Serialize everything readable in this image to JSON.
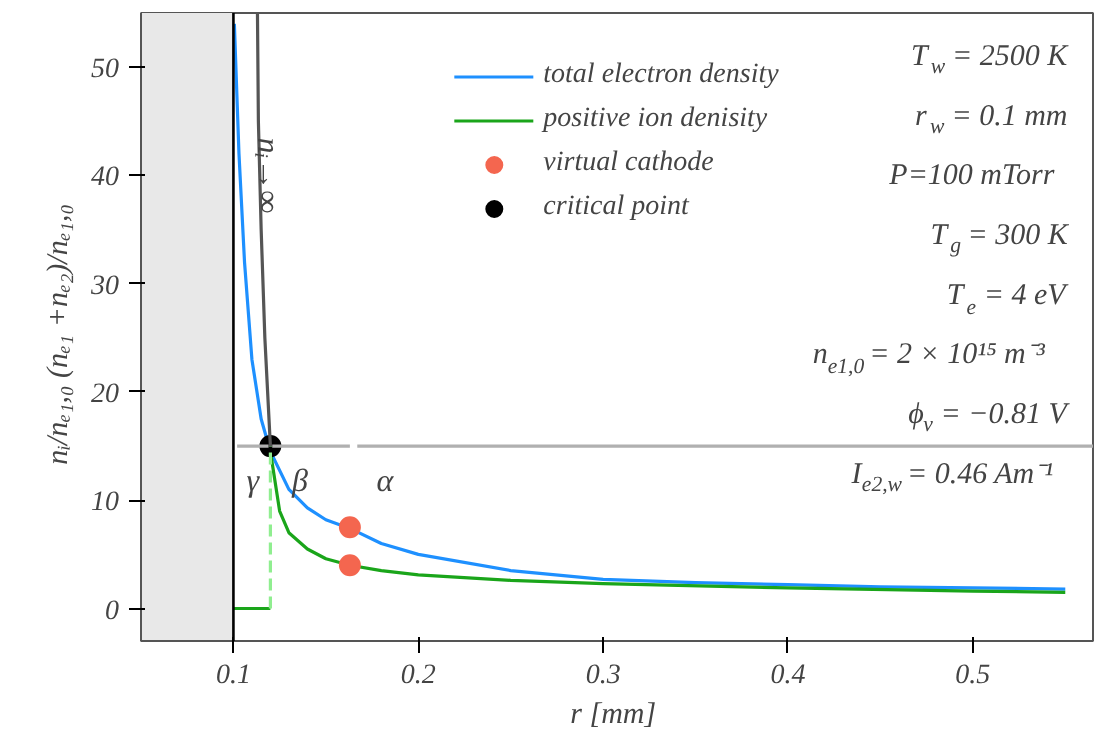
{
  "chart_data": {
    "type": "line",
    "xlabel": "r  [mm]",
    "ylabel": "nᵢ/nₑ₁,₀   (nₑ₁ +nₑ₂)/nₑ₁,₀",
    "xlim": [
      0.05,
      0.565
    ],
    "ylim": [
      -3,
      55
    ],
    "xticks": [
      0.1,
      0.2,
      0.3,
      0.4,
      0.5
    ],
    "yticks": [
      0,
      10,
      20,
      30,
      40,
      50
    ],
    "grid": false,
    "legend": "top",
    "marker": "none",
    "line_style": "solid",
    "series": [
      {
        "name": "total electron density",
        "color": "#1e90ff",
        "x": [
          0.1005,
          0.103,
          0.106,
          0.11,
          0.115,
          0.12,
          0.13,
          0.14,
          0.15,
          0.163,
          0.18,
          0.2,
          0.25,
          0.3,
          0.35,
          0.4,
          0.45,
          0.5,
          0.55
        ],
        "values": [
          54,
          42,
          32,
          23,
          17.5,
          14.5,
          11,
          9.3,
          8.2,
          7.4,
          6,
          5,
          3.5,
          2.7,
          2.4,
          2.2,
          2.0,
          1.9,
          1.8
        ]
      },
      {
        "name": "positive ion denisity",
        "color": "#1aa51a",
        "x": [
          0.12,
          0.125,
          0.13,
          0.14,
          0.15,
          0.163,
          0.18,
          0.2,
          0.25,
          0.3,
          0.4,
          0.5,
          0.55
        ],
        "values": [
          14.5,
          9,
          7,
          5.5,
          4.6,
          4,
          3.5,
          3.1,
          2.6,
          2.3,
          1.9,
          1.6,
          1.5
        ]
      },
      {
        "name": "virtual cathode",
        "type": "scatter",
        "marker": "circle",
        "color": "#f4664f",
        "x": [
          0.163,
          0.163
        ],
        "values": [
          7.5,
          4
        ]
      },
      {
        "name": "critical point",
        "type": "scatter",
        "marker": "circle",
        "color": "#000000",
        "x": [
          0.12
        ],
        "values": [
          15
        ]
      },
      {
        "color": "#1aa51a",
        "x": [
          0.1,
          0.12
        ],
        "values": [
          0,
          0
        ]
      },
      {
        "color": "#90ee90",
        "line_style": "dashed",
        "x": [
          0.12,
          0.12
        ],
        "values": [
          0,
          15
        ]
      },
      {
        "color": "#555555",
        "x": [
          0.12,
          0.117,
          0.115,
          0.1135,
          0.113
        ],
        "values": [
          15,
          25,
          35,
          45,
          55
        ]
      },
      {
        "color": "#b0b0b0",
        "x": [
          0.102,
          0.119,
          0.12,
          0.121,
          0.163,
          0.165,
          0.167,
          0.565
        ],
        "values": [
          15,
          15,
          null,
          15,
          15,
          null,
          15,
          15
        ]
      }
    ],
    "ref_lines": [
      {
        "axis": "x",
        "value": 0.1,
        "color": "#000000"
      }
    ],
    "bands": [
      {
        "axis": "x",
        "from": 0.05,
        "to": 0.1,
        "color": "#e8e8e8"
      }
    ],
    "annotations": [
      "T$_{w}$ = 2500 K",
      "r$_{w}$ = 0.1 mm",
      "P=100 mTorr",
      "T$_{g}$ = 300 K",
      "T$_{e}$ = 4 eV",
      "n$_{e1,0}$ = 2 × 10¹⁵ m⁻³",
      "ϕ$_{v}$ = −0.81 V",
      "I$_{e2,w}$ = 0.46 Am⁻¹",
      {
        "text": "nᵢ→∞",
        "x": 0.118,
        "y": 40
      },
      "γ",
      "β",
      "α"
    ]
  }
}
